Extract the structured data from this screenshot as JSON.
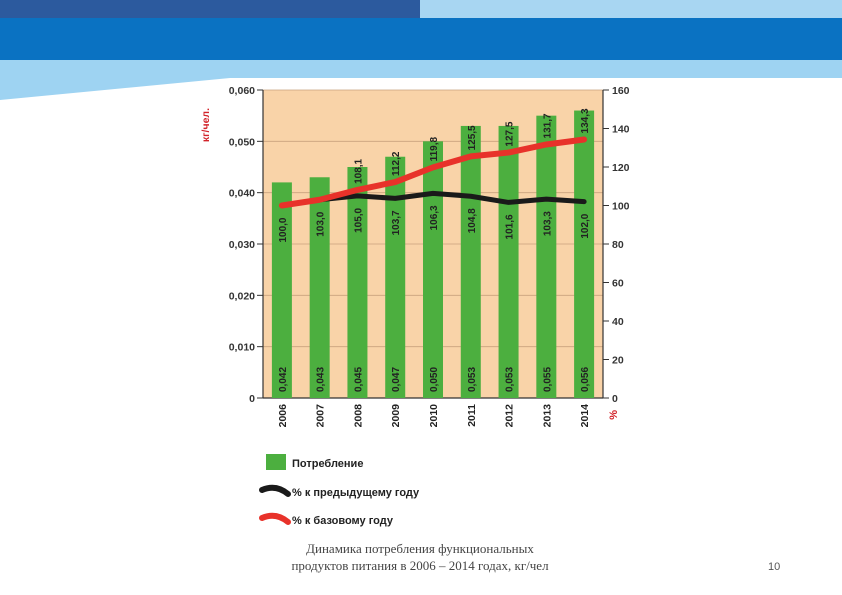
{
  "slide": {
    "caption_line1": "Динамика потребления функциональных",
    "caption_line2": "продуктов питания в 2006 – 2014 годах, кг/чел",
    "page_number": "10"
  },
  "colors": {
    "plot_background": "#F9D3A8",
    "bar": "#4CAF3F",
    "prev_year_line": "#1A1A1A",
    "base_year_line": "#E8322A",
    "left_axis_unit": "#D2232A",
    "header_blue": "#0A72C2",
    "header_light": "#9ED3F2"
  },
  "chart_data": {
    "type": "bar",
    "title": "",
    "categories": [
      "2006",
      "2007",
      "2008",
      "2009",
      "2010",
      "2011",
      "2012",
      "2013",
      "2014"
    ],
    "series": [
      {
        "name": "Потребление",
        "type": "bar",
        "axis": "left",
        "values": [
          0.042,
          0.043,
          0.045,
          0.047,
          0.05,
          0.053,
          0.053,
          0.055,
          0.056
        ],
        "labels": [
          "0,042",
          "0,043",
          "0,045",
          "0,047",
          "0,050",
          "0,053",
          "0,053",
          "0,055",
          "0,056"
        ]
      },
      {
        "name": "% к предыдущему году",
        "type": "line",
        "axis": "right",
        "values": [
          100.0,
          103.0,
          105.0,
          103.7,
          106.3,
          104.8,
          101.6,
          103.3,
          102.0
        ],
        "labels": [
          "100,0",
          "103,0",
          "105,0",
          "103,7",
          "106,3",
          "104,8",
          "101,6",
          "103,3",
          "102,0"
        ]
      },
      {
        "name": "% к базовому году",
        "type": "line",
        "axis": "right",
        "values": [
          100.0,
          103.0,
          108.1,
          112.2,
          119.8,
          125.5,
          127.5,
          131.7,
          134.3
        ],
        "labels": [
          "",
          "",
          "108,1",
          "112,2",
          "119,8",
          "125,5",
          "127,5",
          "131,7",
          "134,3"
        ]
      }
    ],
    "ylabel": "кг/чел.",
    "y2label": "%",
    "ylim": [
      0,
      0.06
    ],
    "y2lim": [
      0,
      160
    ],
    "yticks": [
      "0",
      "0,010",
      "0,020",
      "0,030",
      "0,040",
      "0,050",
      "0,060"
    ],
    "y2ticks": [
      "0",
      "20",
      "40",
      "60",
      "80",
      "100",
      "120",
      "140",
      "160"
    ],
    "legend": [
      "Потребление",
      "% к предыдущему году",
      "% к базовому году"
    ],
    "legend_position": "bottom"
  }
}
